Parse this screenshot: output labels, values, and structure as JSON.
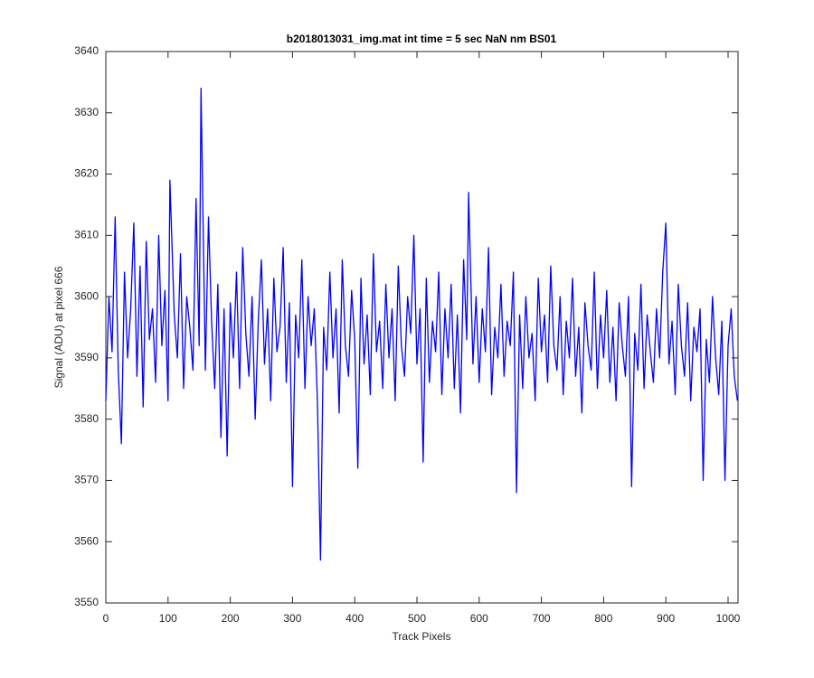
{
  "chart_data": {
    "type": "line",
    "title": "b2018013031_img.mat int time = 5 sec  NaN nm BS01",
    "x_label": "Track Pixels",
    "y_label": "Signal (ADU) at pixel 666",
    "xlim": [
      0,
      1016
    ],
    "ylim": [
      3550,
      3640
    ],
    "xticks": [
      0,
      100,
      200,
      300,
      400,
      500,
      600,
      700,
      800,
      900,
      1000
    ],
    "yticks": [
      3550,
      3560,
      3570,
      3580,
      3590,
      3600,
      3610,
      3620,
      3630,
      3640
    ],
    "grid": false,
    "x": [
      0,
      5,
      10,
      15,
      20,
      25,
      30,
      35,
      40,
      45,
      50,
      55,
      60,
      65,
      70,
      75,
      80,
      85,
      90,
      95,
      100,
      103,
      110,
      115,
      120,
      125,
      130,
      135,
      140,
      145,
      150,
      153,
      160,
      165,
      170,
      175,
      180,
      185,
      190,
      195,
      200,
      205,
      210,
      215,
      220,
      225,
      230,
      235,
      240,
      245,
      250,
      255,
      260,
      265,
      270,
      275,
      280,
      285,
      290,
      295,
      300,
      305,
      310,
      315,
      320,
      325,
      330,
      335,
      340,
      345,
      350,
      355,
      360,
      365,
      370,
      375,
      380,
      385,
      390,
      395,
      400,
      405,
      410,
      415,
      420,
      425,
      430,
      435,
      440,
      445,
      450,
      455,
      460,
      465,
      470,
      475,
      480,
      485,
      490,
      495,
      500,
      505,
      510,
      515,
      520,
      525,
      530,
      535,
      540,
      545,
      550,
      555,
      560,
      565,
      570,
      575,
      580,
      583,
      590,
      595,
      600,
      605,
      610,
      615,
      620,
      625,
      630,
      635,
      640,
      645,
      650,
      655,
      660,
      665,
      670,
      675,
      680,
      685,
      690,
      695,
      700,
      705,
      710,
      715,
      720,
      725,
      730,
      735,
      740,
      745,
      750,
      755,
      760,
      765,
      770,
      775,
      780,
      785,
      790,
      795,
      800,
      805,
      810,
      815,
      820,
      825,
      830,
      835,
      840,
      845,
      850,
      855,
      860,
      865,
      870,
      875,
      880,
      885,
      890,
      895,
      900,
      905,
      910,
      915,
      920,
      925,
      930,
      935,
      940,
      945,
      950,
      955,
      960,
      965,
      970,
      975,
      980,
      985,
      990,
      995,
      1000,
      1005,
      1010,
      1015
    ],
    "series": [
      {
        "color": "#0000ff",
        "values": [
          3583,
          3600,
          3591,
          3613,
          3588,
          3576,
          3604,
          3590,
          3598,
          3612,
          3587,
          3605,
          3582,
          3609,
          3593,
          3598,
          3586,
          3610,
          3592,
          3601,
          3583,
          3619,
          3597,
          3590,
          3607,
          3585,
          3600,
          3595,
          3588,
          3616,
          3592,
          3634,
          3588,
          3613,
          3596,
          3585,
          3602,
          3577,
          3598,
          3574,
          3599,
          3590,
          3604,
          3585,
          3608,
          3594,
          3587,
          3600,
          3580,
          3596,
          3606,
          3589,
          3598,
          3583,
          3603,
          3591,
          3595,
          3608,
          3586,
          3599,
          3569,
          3597,
          3590,
          3606,
          3585,
          3600,
          3592,
          3598,
          3583,
          3557,
          3595,
          3588,
          3604,
          3590,
          3598,
          3581,
          3606,
          3592,
          3587,
          3601,
          3593,
          3572,
          3603,
          3589,
          3597,
          3584,
          3607,
          3591,
          3596,
          3585,
          3602,
          3590,
          3598,
          3583,
          3605,
          3592,
          3587,
          3600,
          3594,
          3610,
          3589,
          3598,
          3573,
          3603,
          3586,
          3596,
          3591,
          3604,
          3584,
          3598,
          3590,
          3602,
          3585,
          3597,
          3581,
          3606,
          3593,
          3617,
          3589,
          3600,
          3586,
          3598,
          3591,
          3608,
          3584,
          3595,
          3590,
          3602,
          3587,
          3596,
          3592,
          3604,
          3568,
          3597,
          3585,
          3600,
          3590,
          3594,
          3583,
          3603,
          3591,
          3597,
          3586,
          3605,
          3592,
          3588,
          3600,
          3584,
          3596,
          3590,
          3603,
          3587,
          3595,
          3581,
          3599,
          3592,
          3588,
          3604,
          3585,
          3597,
          3590,
          3601,
          3586,
          3595,
          3583,
          3599,
          3592,
          3587,
          3600,
          3569,
          3594,
          3588,
          3602,
          3585,
          3597,
          3591,
          3586,
          3598,
          3590,
          3604,
          3612,
          3589,
          3596,
          3584,
          3602,
          3592,
          3587,
          3599,
          3583,
          3595,
          3591,
          3598,
          3570,
          3593,
          3586,
          3600,
          3590,
          3584,
          3596,
          3570,
          3592,
          3598,
          3587,
          3583
        ]
      }
    ]
  }
}
